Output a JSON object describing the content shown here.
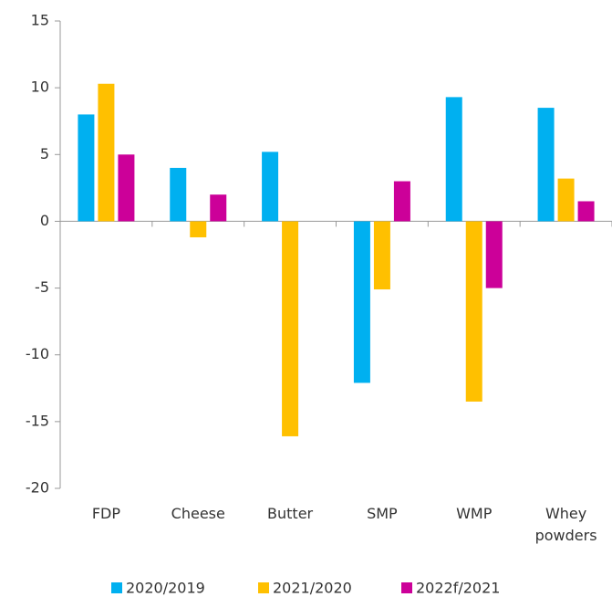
{
  "chart_data": {
    "type": "bar",
    "categories": [
      "FDP",
      "Cheese",
      "Butter",
      "SMP",
      "WMP",
      "Whey powders"
    ],
    "series": [
      {
        "name": "2020/2019",
        "color": "#00b0f0",
        "values": [
          8,
          4,
          5.2,
          -12.1,
          9.3,
          8.5
        ]
      },
      {
        "name": "2021/2020",
        "color": "#ffc000",
        "values": [
          10.3,
          -1.2,
          -16.1,
          -5.1,
          -13.5,
          3.2
        ]
      },
      {
        "name": "2022f/2021",
        "color": "#cc0099",
        "values": [
          5,
          2,
          null,
          3,
          -5,
          1.5
        ]
      }
    ],
    "ylim": [
      -20,
      15
    ],
    "yticks": [
      -20,
      -15,
      -10,
      -5,
      0,
      5,
      10,
      15
    ]
  }
}
